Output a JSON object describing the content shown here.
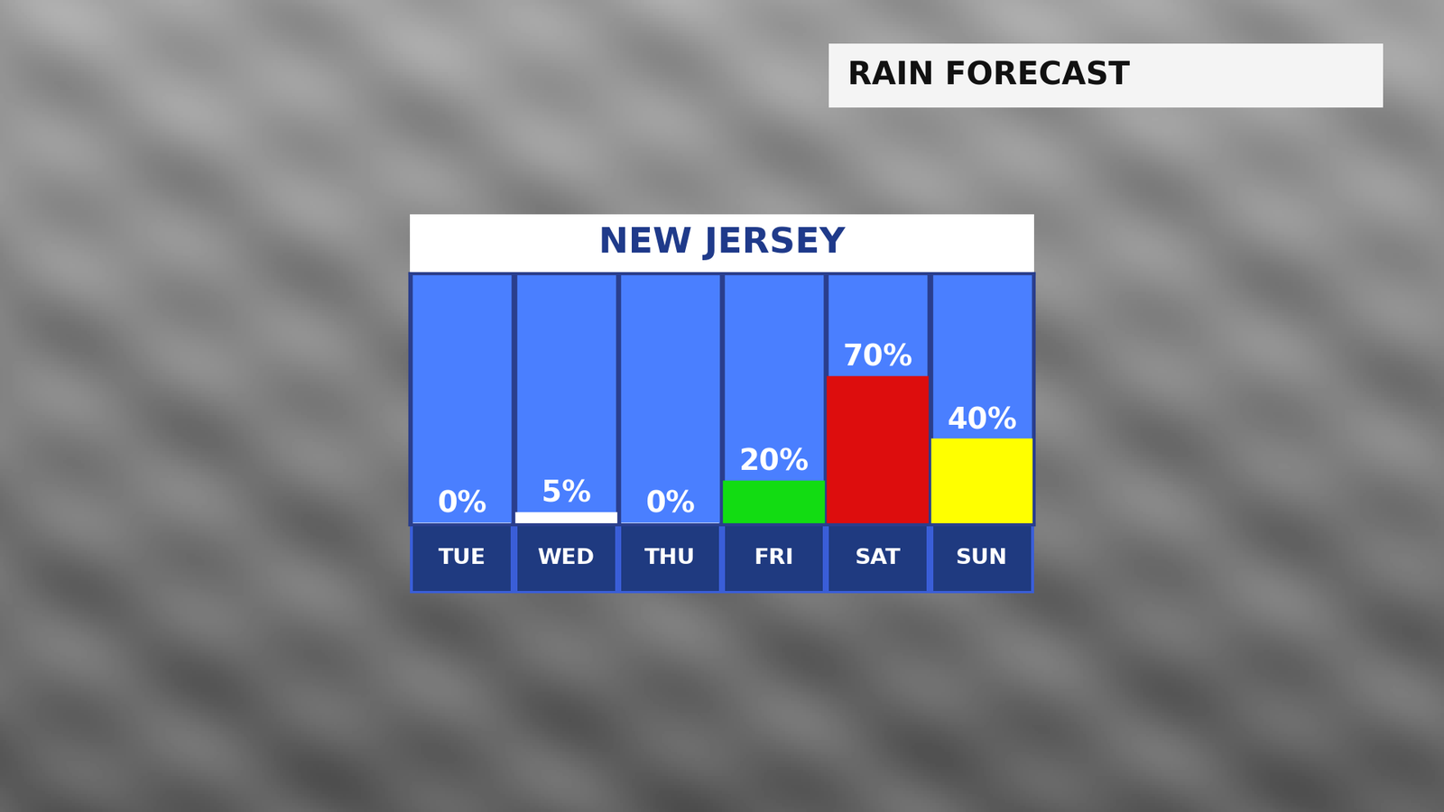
{
  "chart_data": {
    "type": "bar",
    "title": "RAIN FORECAST",
    "subtitle": "NEW JERSEY",
    "categories": [
      "TUE",
      "WED",
      "THU",
      "FRI",
      "SAT",
      "SUN"
    ],
    "values": [
      0,
      5,
      0,
      20,
      70,
      40
    ],
    "value_labels": [
      "0%",
      "5%",
      "0%",
      "20%",
      "70%",
      "40%"
    ],
    "colors": [
      "#ffffff",
      "#ffffff",
      "#ffffff",
      "#12dc12",
      "#dd0d0d",
      "#ffff00"
    ],
    "ylim": [
      0,
      120
    ],
    "data_labels": true,
    "tick_labels": "x"
  }
}
